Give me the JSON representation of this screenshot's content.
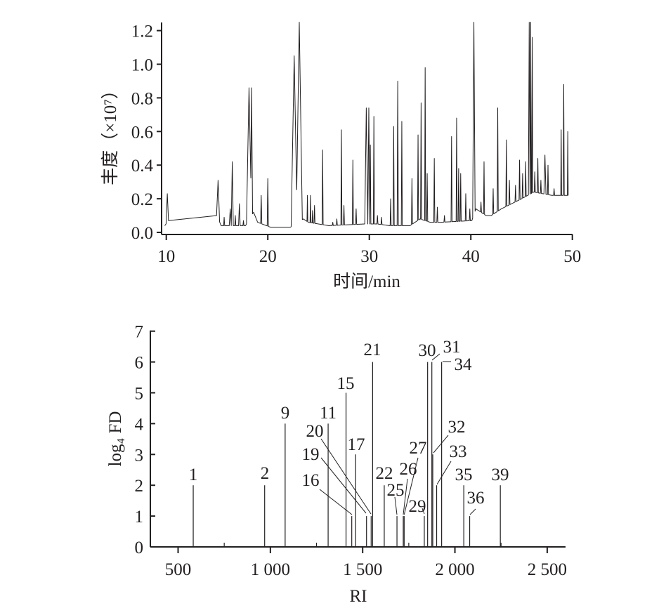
{
  "chart_data": [
    {
      "type": "line",
      "xlabel": "时间/min",
      "ylabel": "丰度（×10⁷）",
      "xlim": [
        9.5,
        50
      ],
      "ylim": [
        0,
        1.25
      ],
      "xticks": [
        "10",
        "20",
        "30",
        "40",
        "50"
      ],
      "xtick_values": [
        10,
        20,
        30,
        40,
        50
      ],
      "yticks": [
        "0.0",
        "0.2",
        "0.4",
        "0.6",
        "0.8",
        "1.0",
        "1.2"
      ],
      "ytick_values": [
        0,
        0.2,
        0.4,
        0.6,
        0.8,
        1.0,
        1.2
      ],
      "grid": false,
      "line_color": "#231f20",
      "baseline": [
        [
          9.85,
          0.04
        ],
        [
          10.2,
          0.07
        ],
        [
          15.0,
          0.1
        ],
        [
          15.4,
          0.04
        ],
        [
          17.8,
          0.04
        ],
        [
          18.6,
          0.12
        ],
        [
          19.0,
          0.06
        ],
        [
          20.3,
          0.03
        ],
        [
          22.2,
          0.03
        ],
        [
          23.5,
          0.08
        ],
        [
          24.0,
          0.06
        ],
        [
          26.0,
          0.04
        ],
        [
          29.5,
          0.05
        ],
        [
          30.8,
          0.05
        ],
        [
          32.0,
          0.04
        ],
        [
          34.0,
          0.04
        ],
        [
          35.0,
          0.08
        ],
        [
          36.0,
          0.06
        ],
        [
          37.0,
          0.06
        ],
        [
          40.1,
          0.07
        ],
        [
          40.5,
          0.14
        ],
        [
          41.5,
          0.1
        ],
        [
          42.0,
          0.1
        ],
        [
          43.0,
          0.14
        ],
        [
          44.0,
          0.17
        ],
        [
          45.0,
          0.2
        ],
        [
          46.2,
          0.24
        ],
        [
          48.0,
          0.22
        ],
        [
          49.6,
          0.22
        ]
      ],
      "peaks": [
        [
          10.1,
          0.23,
          0.12
        ],
        [
          15.1,
          0.31,
          0.15
        ],
        [
          15.7,
          0.09,
          0.05
        ],
        [
          16.3,
          0.14,
          0.1
        ],
        [
          16.5,
          0.42,
          0.1
        ],
        [
          16.8,
          0.1,
          0.05
        ],
        [
          17.2,
          0.17,
          0.08
        ],
        [
          17.6,
          0.07,
          0.05
        ],
        [
          18.15,
          0.86,
          0.25
        ],
        [
          18.4,
          0.86,
          0.1
        ],
        [
          19.35,
          0.22,
          0.06
        ],
        [
          20.0,
          0.32,
          0.06
        ],
        [
          22.6,
          1.05,
          0.3
        ],
        [
          23.1,
          1.25,
          0.3
        ],
        [
          23.9,
          0.22,
          0.04
        ],
        [
          24.2,
          0.22,
          0.04
        ],
        [
          24.4,
          0.13,
          0.04
        ],
        [
          24.6,
          0.16,
          0.05
        ],
        [
          25.4,
          0.49,
          0.05
        ],
        [
          26.4,
          0.06,
          0.05
        ],
        [
          26.8,
          0.08,
          0.05
        ],
        [
          27.25,
          0.61,
          0.05
        ],
        [
          27.5,
          0.16,
          0.05
        ],
        [
          28.38,
          0.43,
          0.05
        ],
        [
          28.7,
          0.14,
          0.05
        ],
        [
          29.7,
          0.74,
          0.15
        ],
        [
          29.95,
          0.74,
          0.1
        ],
        [
          30.1,
          0.52,
          0.05
        ],
        [
          30.45,
          0.69,
          0.05
        ],
        [
          30.8,
          0.1,
          0.05
        ],
        [
          31.2,
          0.09,
          0.05
        ],
        [
          32.1,
          0.2,
          0.05
        ],
        [
          32.4,
          0.63,
          0.05
        ],
        [
          32.8,
          0.9,
          0.06
        ],
        [
          33.2,
          0.66,
          0.05
        ],
        [
          34.2,
          0.32,
          0.05
        ],
        [
          34.8,
          0.58,
          0.05
        ],
        [
          35.1,
          0.77,
          0.05
        ],
        [
          35.5,
          0.98,
          0.05
        ],
        [
          35.7,
          0.35,
          0.05
        ],
        [
          36.4,
          0.44,
          0.05
        ],
        [
          36.7,
          0.15,
          0.05
        ],
        [
          37.4,
          0.1,
          0.05
        ],
        [
          38.1,
          0.57,
          0.05
        ],
        [
          38.6,
          0.68,
          0.05
        ],
        [
          38.8,
          0.38,
          0.05
        ],
        [
          39.0,
          0.35,
          0.05
        ],
        [
          39.5,
          0.23,
          0.05
        ],
        [
          39.9,
          0.14,
          0.05
        ],
        [
          40.3,
          1.25,
          0.12
        ],
        [
          41.0,
          0.18,
          0.05
        ],
        [
          41.3,
          0.42,
          0.05
        ],
        [
          42.2,
          0.26,
          0.05
        ],
        [
          42.65,
          0.74,
          0.05
        ],
        [
          43.5,
          0.55,
          0.05
        ],
        [
          43.8,
          0.31,
          0.05
        ],
        [
          44.4,
          0.28,
          0.05
        ],
        [
          44.8,
          0.43,
          0.05
        ],
        [
          45.1,
          0.35,
          0.05
        ],
        [
          45.4,
          0.42,
          0.05
        ],
        [
          45.75,
          1.25,
          0.08
        ],
        [
          45.9,
          1.25,
          0.05
        ],
        [
          46.05,
          1.16,
          0.05
        ],
        [
          46.3,
          0.36,
          0.05
        ],
        [
          46.6,
          0.44,
          0.05
        ],
        [
          46.9,
          0.31,
          0.05
        ],
        [
          47.3,
          0.46,
          0.1
        ],
        [
          47.6,
          0.4,
          0.05
        ],
        [
          48.2,
          0.26,
          0.05
        ],
        [
          48.9,
          0.61,
          0.04
        ],
        [
          49.15,
          0.88,
          0.05
        ],
        [
          49.55,
          0.6,
          0.04
        ]
      ]
    },
    {
      "type": "bar",
      "xlabel": "RI",
      "ylabel": "log₄ FD",
      "xlim": [
        350,
        2600
      ],
      "ylim": [
        0,
        7
      ],
      "xticks": [
        "500",
        "1 000",
        "1 500",
        "2 000",
        "2 500"
      ],
      "xtick_values": [
        500,
        1000,
        1500,
        2000,
        2500
      ],
      "minor_xticks": [
        750,
        1250,
        1750,
        2250
      ],
      "yticks": [
        "0",
        "1",
        "2",
        "3",
        "4",
        "5",
        "6",
        "7"
      ],
      "grid": false,
      "bars": [
        {
          "label": "1",
          "ri": 582,
          "value": 2
        },
        {
          "label": "2",
          "ri": 969,
          "value": 2
        },
        {
          "label": "9",
          "ri": 1080,
          "value": 4
        },
        {
          "label": "11",
          "ri": 1313,
          "value": 4
        },
        {
          "label": "15",
          "ri": 1410,
          "value": 5
        },
        {
          "label": "16",
          "ri": 1441,
          "value": 1
        },
        {
          "label": "17",
          "ri": 1462,
          "value": 3
        },
        {
          "label": "19",
          "ri": 1521,
          "value": 1
        },
        {
          "label": "20",
          "ri": 1546,
          "value": 1
        },
        {
          "label": "21",
          "ri": 1554,
          "value": 6
        },
        {
          "label": "22",
          "ri": 1617,
          "value": 2
        },
        {
          "label": "25",
          "ri": 1686,
          "value": 1
        },
        {
          "label": "26",
          "ri": 1720,
          "value": 1
        },
        {
          "label": "27",
          "ri": 1725,
          "value": 1
        },
        {
          "label": "29",
          "ri": 1834,
          "value": 1
        },
        {
          "label": "30",
          "ri": 1852,
          "value": 6
        },
        {
          "label": "31",
          "ri": 1875,
          "value": 6
        },
        {
          "label": "32",
          "ri": 1880,
          "value": 3
        },
        {
          "label": "33",
          "ri": 1901,
          "value": 2
        },
        {
          "label": "34",
          "ri": 1928,
          "value": 6
        },
        {
          "label": "35",
          "ri": 2048,
          "value": 2
        },
        {
          "label": "36",
          "ri": 2080,
          "value": 1
        },
        {
          "label": "39",
          "ri": 2246,
          "value": 2
        }
      ]
    }
  ]
}
